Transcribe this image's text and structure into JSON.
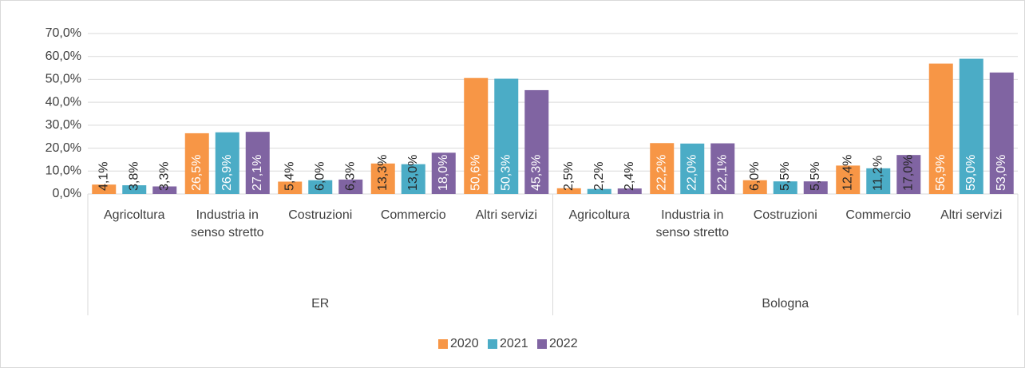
{
  "chart_data": {
    "type": "bar",
    "groups": [
      "ER",
      "Bologna"
    ],
    "categories": [
      "Agricoltura",
      "Industria in senso stretto",
      "Costruzioni",
      "Commercio",
      "Altri servizi",
      "Agricoltura",
      "Industria in senso stretto",
      "Costruzioni",
      "Commercio",
      "Altri servizi"
    ],
    "series": [
      {
        "name": "2020",
        "color": "#f79646",
        "values": [
          4.1,
          26.5,
          5.4,
          13.3,
          50.6,
          2.5,
          22.2,
          6.0,
          12.4,
          56.9
        ],
        "value_labels": [
          "4,1%",
          "26,5%",
          "5,4%",
          "13,3%",
          "50,6%",
          "2,5%",
          "22,2%",
          "6,0%",
          "12,4%",
          "56,9%"
        ]
      },
      {
        "name": "2021",
        "color": "#4bacc6",
        "values": [
          3.8,
          26.9,
          6.0,
          13.0,
          50.3,
          2.2,
          22.0,
          5.5,
          11.2,
          59.0
        ],
        "value_labels": [
          "3,8%",
          "26,9%",
          "6,0%",
          "13,0%",
          "50,3%",
          "2,2%",
          "22,0%",
          "5,5%",
          "11,2%",
          "59,0%"
        ]
      },
      {
        "name": "2022",
        "color": "#8064a2",
        "values": [
          3.3,
          27.1,
          6.3,
          18.0,
          45.3,
          2.4,
          22.1,
          5.5,
          17.0,
          53.0
        ],
        "value_labels": [
          "3,3%",
          "27,1%",
          "6,3%",
          "18,0%",
          "45,3%",
          "2,4%",
          "22,1%",
          "5,5%",
          "17,0%",
          "53,0%"
        ]
      }
    ],
    "ylim": [
      0,
      70
    ],
    "yticks": [
      {
        "value": 0,
        "label": "0,0%"
      },
      {
        "value": 10,
        "label": "10,0%"
      },
      {
        "value": 20,
        "label": "20,0%"
      },
      {
        "value": 30,
        "label": "30,0%"
      },
      {
        "value": 40,
        "label": "40,0%"
      },
      {
        "value": 50,
        "label": "50,0%"
      },
      {
        "value": 60,
        "label": "60,0%"
      },
      {
        "value": 70,
        "label": "70,0%"
      }
    ],
    "grid": true,
    "legend": "bottom"
  }
}
